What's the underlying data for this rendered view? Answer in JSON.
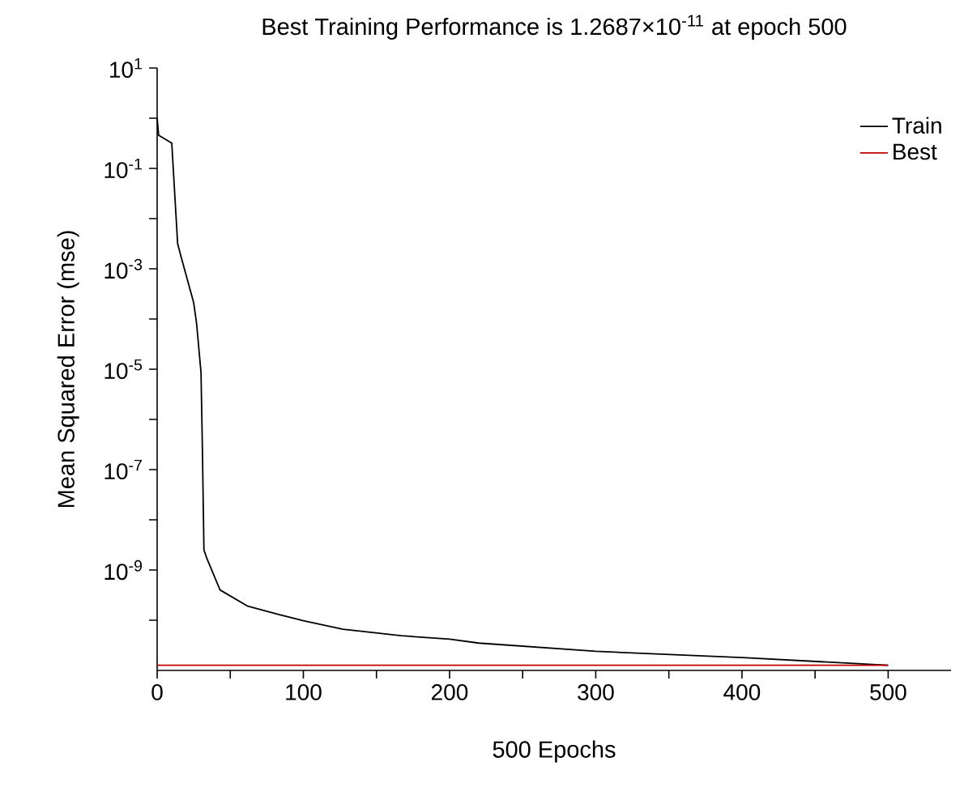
{
  "chart_data": {
    "type": "line",
    "title": "Best Training Performance is 1.2687×10$^{-11}$ at epoch 500",
    "xlabel": "500 Epochs",
    "ylabel": "Mean Squared Error (mse)",
    "log": "y",
    "xlim": [
      0,
      543
    ],
    "ylim": [
      1e-11,
      10
    ],
    "xticks": [
      0,
      {
        "value": 50,
        "label": null
      },
      100,
      {
        "value": 150,
        "label": null
      },
      200,
      {
        "value": 250,
        "label": null
      },
      300,
      {
        "value": 350,
        "label": null
      },
      400,
      {
        "value": 450,
        "label": null
      },
      500
    ],
    "yticks": [
      {
        "value": 10,
        "label": "10$^{1}$"
      },
      {
        "value": 1,
        "label": null
      },
      {
        "value": 0.1,
        "label": "10$^{-1}$"
      },
      {
        "value": 0.01,
        "label": null
      },
      {
        "value": 0.001,
        "label": "10$^{-3}$"
      },
      {
        "value": 0.0001,
        "label": null
      },
      {
        "value": 1e-05,
        "label": "10$^{-5}$"
      },
      {
        "value": 1e-06,
        "label": null
      },
      {
        "value": 1e-07,
        "label": "10$^{-7}$"
      },
      {
        "value": 1e-08,
        "label": null
      },
      {
        "value": 1e-09,
        "label": "10$^{-9}$"
      },
      {
        "value": 1e-10,
        "label": null
      }
    ],
    "grid": false,
    "legend": "top right",
    "marker": "none",
    "line_style": "solid",
    "series": [
      {
        "name": "Train",
        "color": "#000000",
        "x": [
          0,
          1,
          10,
          11,
          14,
          16,
          25,
          27,
          30,
          31,
          32,
          34,
          43,
          62,
          83,
          100,
          127,
          167,
          200,
          220,
          300,
          400,
          500
        ],
        "values": [
          1.0,
          0.46,
          0.32,
          0.1,
          0.0032,
          0.0019,
          0.00021,
          8e-05,
          8.5e-06,
          2.1e-07,
          2.5e-09,
          1.7e-09,
          4e-10,
          1.9e-10,
          1.3e-10,
          9.8e-11,
          6.6e-11,
          4.9e-11,
          4.2e-11,
          3.5e-11,
          2.4e-11,
          1.8e-11,
          1.2687e-11
        ]
      },
      {
        "name": "Best",
        "color": "#c00000",
        "x": [
          0,
          500
        ],
        "values": [
          1.2687e-11,
          1.2687e-11
        ]
      }
    ]
  }
}
